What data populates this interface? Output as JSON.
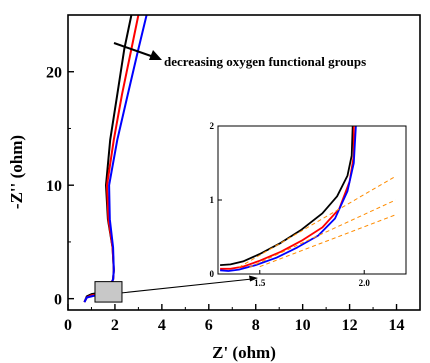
{
  "chart_data": {
    "type": "line",
    "xlabel": "Z' (ohm)",
    "ylabel": "-Z'' (ohm)",
    "xlim": [
      0,
      15
    ],
    "ylim": [
      -1,
      25
    ],
    "x_ticks": [
      0,
      2,
      4,
      6,
      8,
      10,
      12,
      14
    ],
    "y_ticks": [
      0,
      10,
      20
    ],
    "annotation": "decreasing oxygen functional groups",
    "grid": false,
    "series": [
      {
        "color": "#000000",
        "points": [
          [
            0.7,
            -0.3
          ],
          [
            0.8,
            0.2
          ],
          [
            1.0,
            0.4
          ],
          [
            1.3,
            0.5
          ],
          [
            1.6,
            0.7
          ],
          [
            1.8,
            1.2
          ],
          [
            1.92,
            1.7
          ],
          [
            1.95,
            2.5
          ],
          [
            1.9,
            4.5
          ],
          [
            1.7,
            7
          ],
          [
            1.62,
            10
          ],
          [
            1.8,
            14
          ],
          [
            2.1,
            18
          ],
          [
            2.4,
            22
          ],
          [
            2.7,
            25
          ]
        ]
      },
      {
        "color": "#ff0000",
        "points": [
          [
            0.7,
            -0.3
          ],
          [
            0.8,
            0.1
          ],
          [
            1.0,
            0.3
          ],
          [
            1.3,
            0.4
          ],
          [
            1.6,
            0.6
          ],
          [
            1.8,
            1.2
          ],
          [
            1.92,
            1.7
          ],
          [
            1.95,
            2.5
          ],
          [
            1.9,
            4.5
          ],
          [
            1.72,
            7
          ],
          [
            1.66,
            10
          ],
          [
            1.95,
            14
          ],
          [
            2.3,
            18
          ],
          [
            2.7,
            22
          ],
          [
            3.0,
            25
          ]
        ]
      },
      {
        "color": "#0000ff",
        "points": [
          [
            0.7,
            -0.3
          ],
          [
            0.8,
            0.1
          ],
          [
            1.0,
            0.2
          ],
          [
            1.3,
            0.35
          ],
          [
            1.6,
            0.55
          ],
          [
            1.8,
            1.1
          ],
          [
            1.92,
            1.7
          ],
          [
            1.95,
            2.5
          ],
          [
            1.92,
            4.5
          ],
          [
            1.78,
            7
          ],
          [
            1.75,
            10
          ],
          [
            2.1,
            14
          ],
          [
            2.55,
            18
          ],
          [
            3.0,
            22
          ],
          [
            3.35,
            25
          ]
        ]
      }
    ],
    "inset": {
      "xlim": [
        1.3,
        2.2
      ],
      "ylim": [
        0,
        2
      ],
      "x_ticks": [
        1.5,
        2.0
      ],
      "y_ticks": [
        0,
        1,
        2
      ],
      "zoom_region": {
        "x": [
          1.15,
          2.3
        ],
        "y": [
          -0.3,
          1.5
        ]
      },
      "series": [
        {
          "color": "#000000",
          "points": [
            [
              1.31,
              0.12
            ],
            [
              1.36,
              0.13
            ],
            [
              1.42,
              0.17
            ],
            [
              1.5,
              0.27
            ],
            [
              1.6,
              0.42
            ],
            [
              1.7,
              0.6
            ],
            [
              1.8,
              0.82
            ],
            [
              1.87,
              1.05
            ],
            [
              1.92,
              1.33
            ],
            [
              1.94,
              1.6
            ],
            [
              1.945,
              2.0
            ]
          ]
        },
        {
          "color": "#ff0000",
          "points": [
            [
              1.31,
              0.07
            ],
            [
              1.36,
              0.07
            ],
            [
              1.42,
              0.1
            ],
            [
              1.5,
              0.18
            ],
            [
              1.6,
              0.3
            ],
            [
              1.7,
              0.45
            ],
            [
              1.8,
              0.63
            ],
            [
              1.88,
              0.88
            ],
            [
              1.93,
              1.25
            ],
            [
              1.95,
              1.6
            ],
            [
              1.95,
              2.0
            ]
          ]
        },
        {
          "color": "#0000ff",
          "points": [
            [
              1.31,
              0.05
            ],
            [
              1.35,
              0.04
            ],
            [
              1.4,
              0.06
            ],
            [
              1.48,
              0.12
            ],
            [
              1.58,
              0.22
            ],
            [
              1.68,
              0.36
            ],
            [
              1.78,
              0.52
            ],
            [
              1.86,
              0.75
            ],
            [
              1.92,
              1.12
            ],
            [
              1.95,
              1.5
            ],
            [
              1.96,
              2.0
            ]
          ]
        },
        {
          "color": "#ff8c00",
          "dashed": true,
          "points": [
            [
              1.4,
              0.09
            ],
            [
              2.15,
              1.32
            ]
          ]
        },
        {
          "color": "#ff8c00",
          "dashed": true,
          "points": [
            [
              1.45,
              0.09
            ],
            [
              2.15,
              1.0
            ]
          ]
        },
        {
          "color": "#ff8c00",
          "dashed": true,
          "points": [
            [
              1.5,
              0.1
            ],
            [
              2.15,
              0.8
            ]
          ]
        }
      ]
    }
  }
}
